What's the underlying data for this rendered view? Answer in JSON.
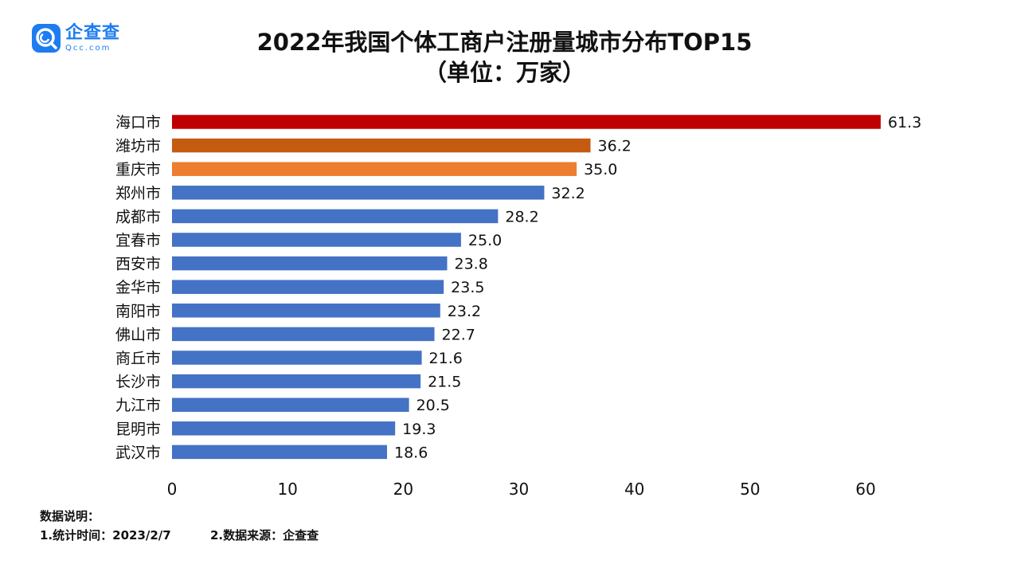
{
  "logo": {
    "icon": "qcc-logo-icon",
    "name": "企查查",
    "domain": "Qcc.com",
    "color": "#1e7cf2"
  },
  "title": {
    "line1": "2022年我国个体工商户注册量城市分布TOP15",
    "line2": "（单位：万家）"
  },
  "chart_data": {
    "type": "bar",
    "orientation": "horizontal",
    "categories": [
      "海口市",
      "潍坊市",
      "重庆市",
      "郑州市",
      "成都市",
      "宜春市",
      "西安市",
      "金华市",
      "南阳市",
      "佛山市",
      "商丘市",
      "长沙市",
      "九江市",
      "昆明市",
      "武汉市"
    ],
    "values": [
      61.3,
      36.2,
      35.0,
      32.2,
      28.2,
      25.0,
      23.8,
      23.5,
      23.2,
      22.7,
      21.6,
      21.5,
      20.5,
      19.3,
      18.6
    ],
    "value_labels": [
      "61.3",
      "36.2",
      "35.0",
      "32.2",
      "28.2",
      "25.0",
      "23.8",
      "23.5",
      "23.2",
      "22.7",
      "21.6",
      "21.5",
      "20.5",
      "19.3",
      "18.6"
    ],
    "bar_colors": [
      "#c00000",
      "#c55a11",
      "#ed7d31",
      "#4472c4",
      "#4472c4",
      "#4472c4",
      "#4472c4",
      "#4472c4",
      "#4472c4",
      "#4472c4",
      "#4472c4",
      "#4472c4",
      "#4472c4",
      "#4472c4",
      "#4472c4"
    ],
    "xlim": [
      0,
      60
    ],
    "xticks": [
      0,
      10,
      20,
      30,
      40,
      50,
      60
    ],
    "xtick_labels": [
      "0",
      "10",
      "20",
      "30",
      "40",
      "50",
      "60"
    ],
    "grid": false,
    "legend": "none"
  },
  "notes": {
    "heading": "数据说明：",
    "item1": "1.统计时间：2023/2/7",
    "item2": "2.数据来源：企查查"
  }
}
